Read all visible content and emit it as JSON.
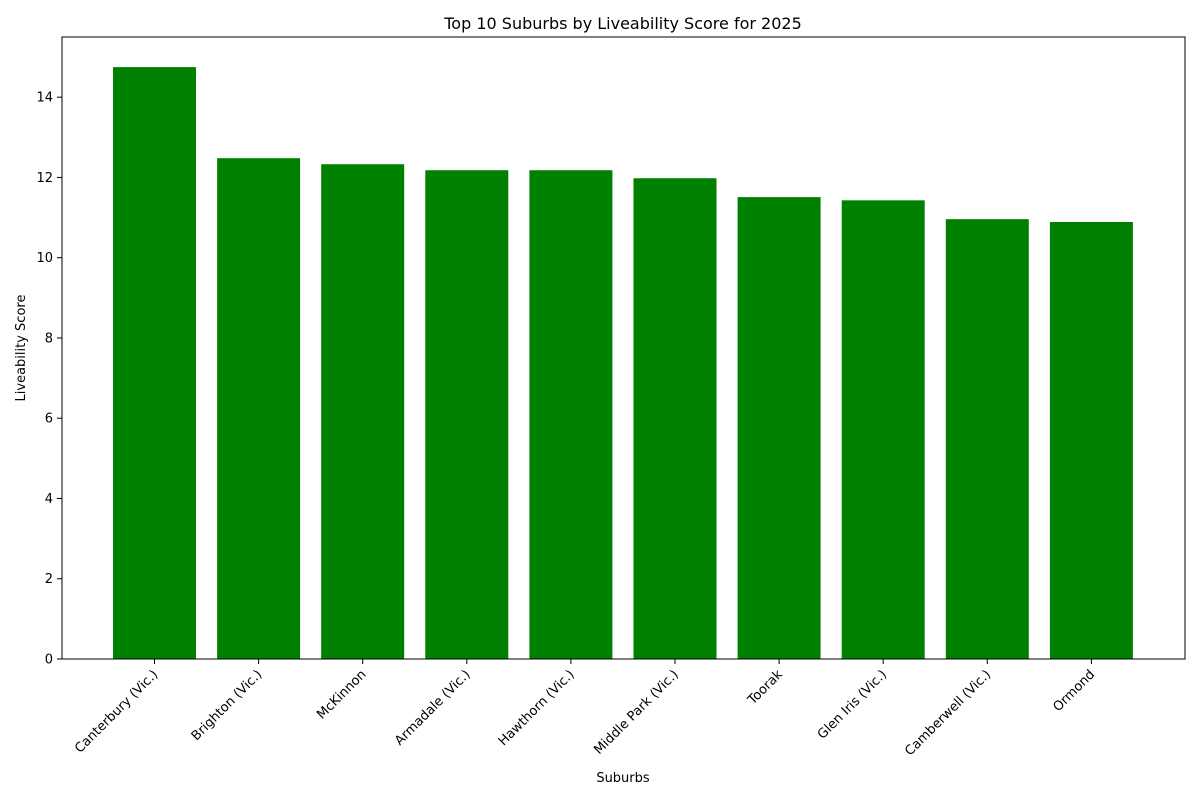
{
  "chart_data": {
    "type": "bar",
    "title": "Top 10 Suburbs by Liveability Score for 2025",
    "xlabel": "Suburbs",
    "ylabel": "Liveability Score",
    "categories": [
      "Canterbury (Vic.)",
      "Brighton (Vic.)",
      "McKinnon",
      "Armadale (Vic.)",
      "Hawthorn (Vic.)",
      "Middle Park (Vic.)",
      "Toorak",
      "Glen Iris (Vic.)",
      "Camberwell (Vic.)",
      "Ormond"
    ],
    "values": [
      14.75,
      12.48,
      12.33,
      12.18,
      12.18,
      11.98,
      11.51,
      11.43,
      10.96,
      10.89
    ],
    "ylim": [
      0,
      15.5
    ],
    "yticks": [
      0,
      2,
      4,
      6,
      8,
      10,
      12,
      14
    ],
    "bar_color": "#008000",
    "grid": false,
    "legend": "none"
  }
}
